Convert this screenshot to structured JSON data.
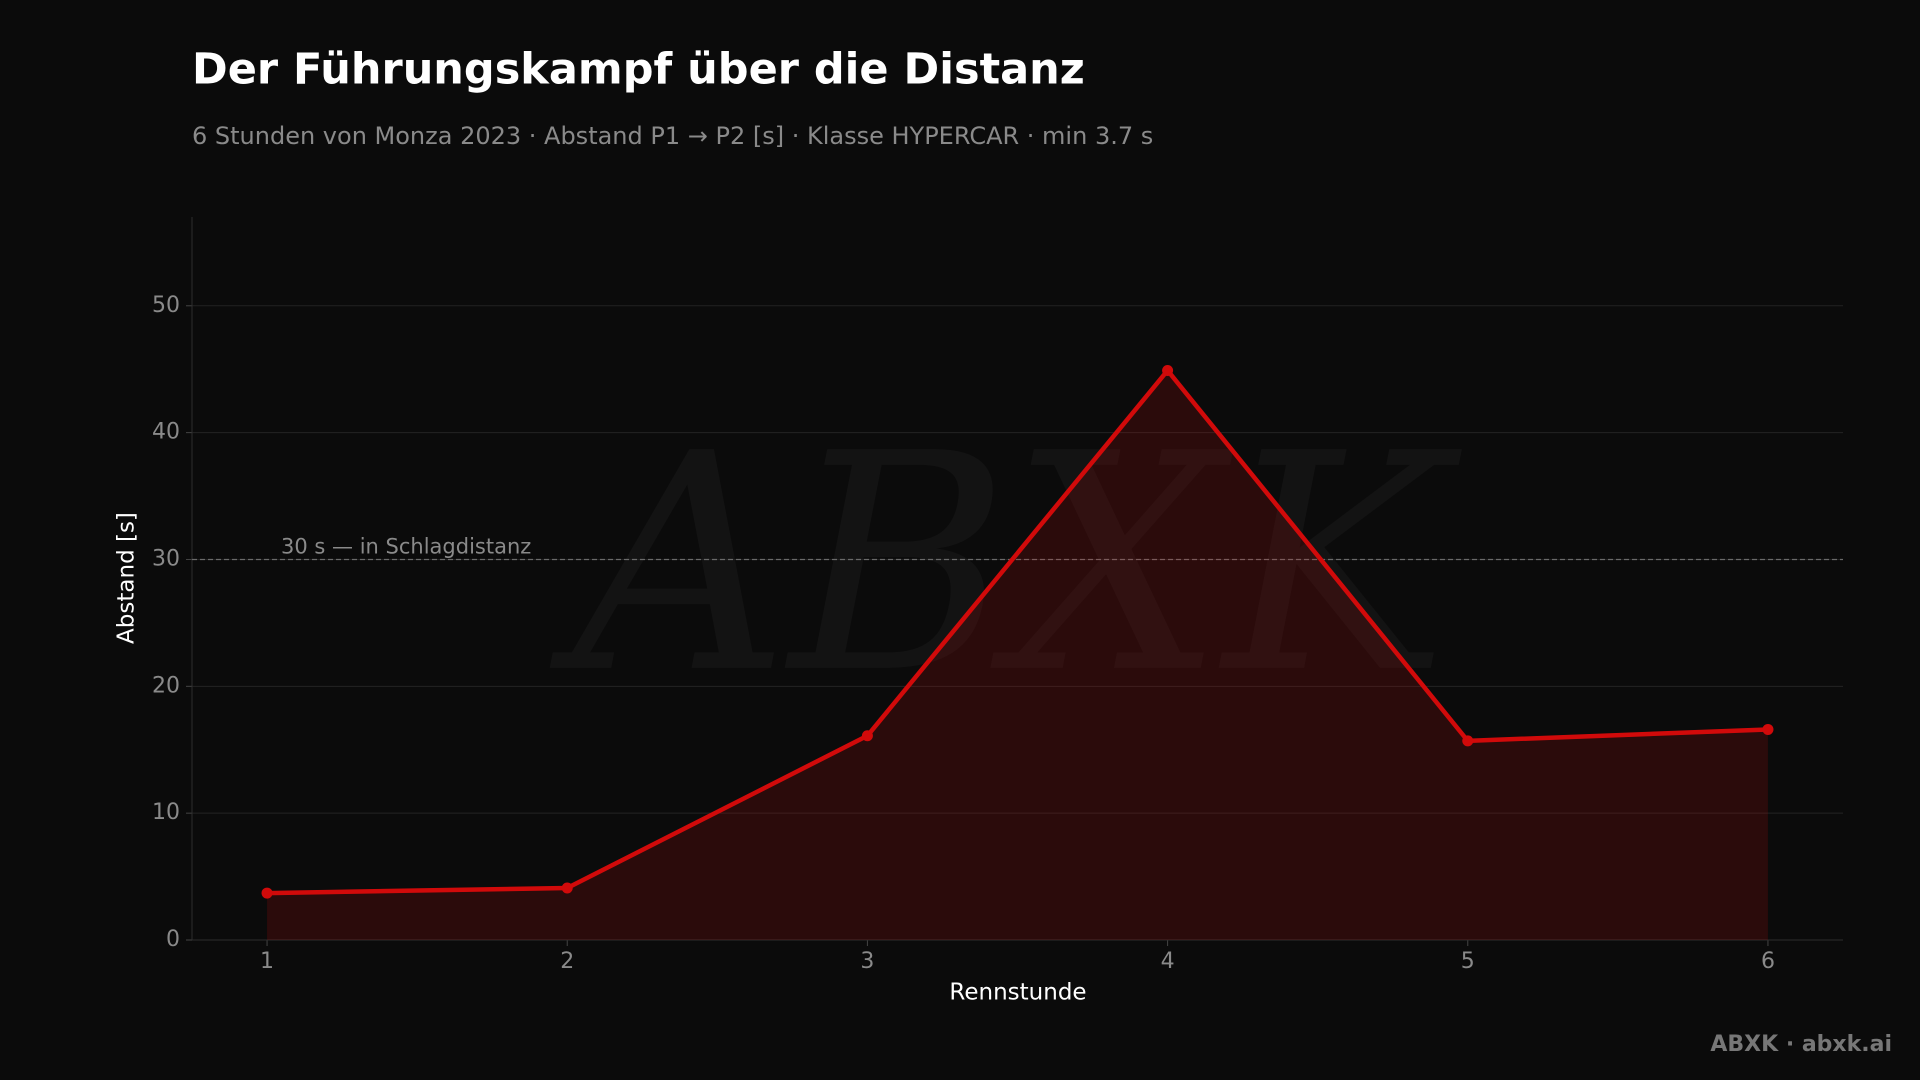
{
  "chart_data": {
    "type": "line",
    "title": "Der Führungskampf über die Distanz",
    "subtitle": "6 Stunden von Monza 2023 · Abstand P1 → P2 [s] · Klasse HYPERCAR · min 3.7 s",
    "x_label": "Rennstunde",
    "y_label": "Abstand [s]",
    "x": [
      1,
      2,
      3,
      4,
      5,
      6
    ],
    "series": [
      {
        "name": "Abstand P1 → P2",
        "color": "#d10a0a",
        "values": [
          3.7,
          4.1,
          16.1,
          44.9,
          15.7,
          16.6
        ]
      }
    ],
    "xlim": [
      0.75,
      6.25
    ],
    "xticks": [
      1,
      2,
      3,
      4,
      5,
      6
    ],
    "ylim": [
      0,
      57
    ],
    "yticks": [
      0,
      10,
      20,
      30,
      40,
      50
    ],
    "grid": true,
    "threshold": {
      "value": 30,
      "label": "30 s — in Schlagdistanz"
    },
    "watermark": "ABXK",
    "footer": "ABXK · abxk.ai"
  }
}
